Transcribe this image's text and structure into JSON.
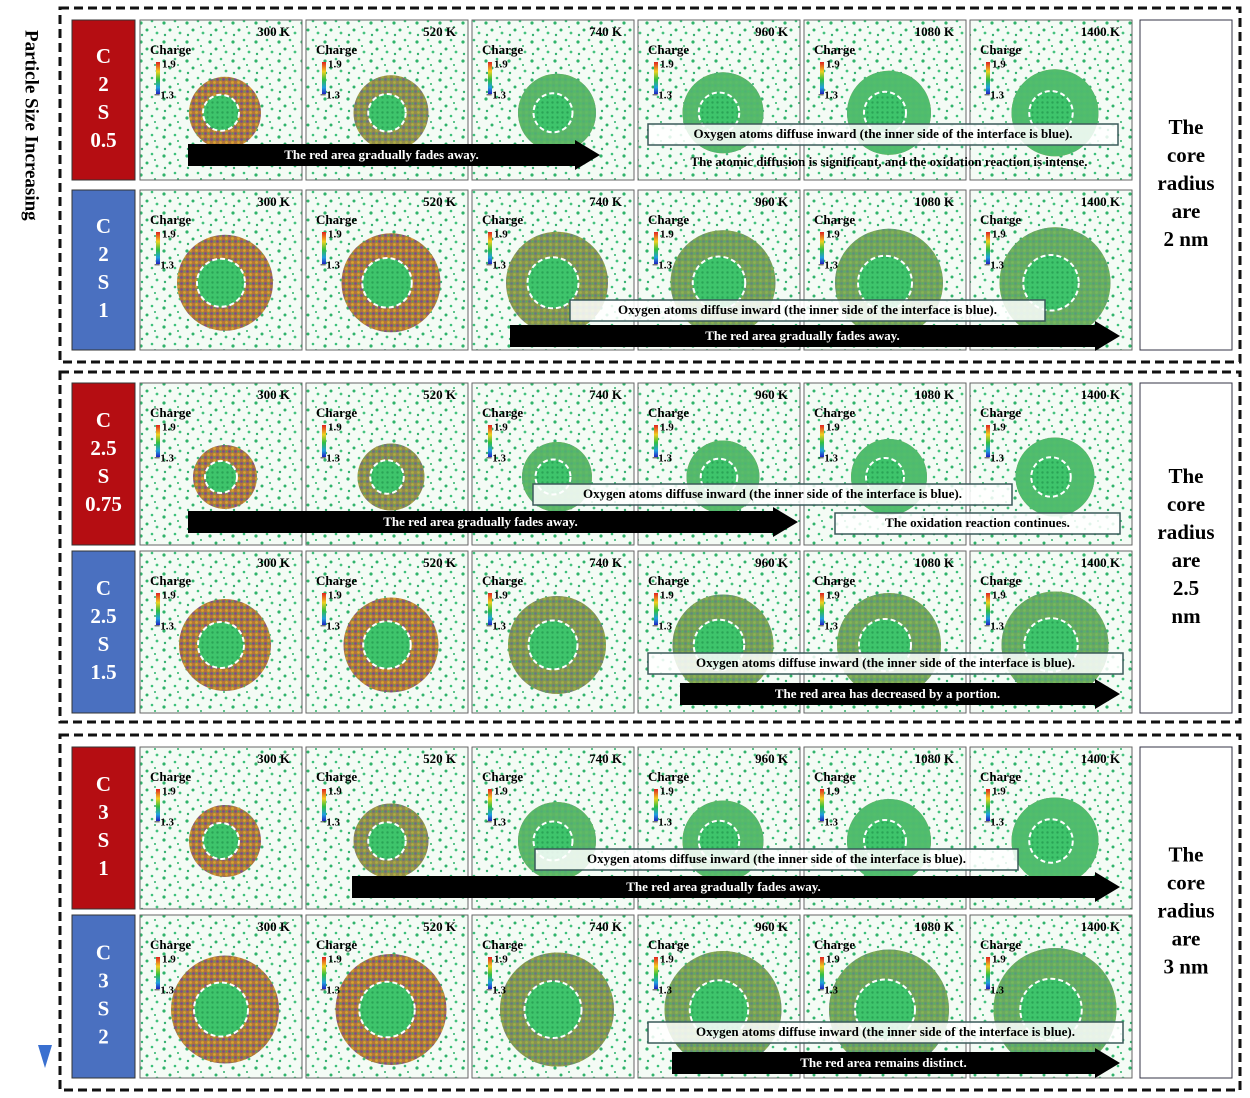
{
  "side_label": "Particle Size Increasing",
  "temperatures": [
    "300 K",
    "520 K",
    "740 K",
    "960 K",
    "1080 K",
    "1400 K"
  ],
  "legend": {
    "title": "Charge",
    "max": "1.9",
    "min": "−1.3"
  },
  "groups": [
    {
      "radius_text": [
        "The",
        "core",
        "radius",
        "are",
        "2 nm"
      ],
      "rows": [
        {
          "label": [
            "C",
            "2",
            "S",
            "0.5"
          ],
          "arrow": "The red area gradually fades away.",
          "notes": [
            "Oxygen atoms diffuse inward (the inner side of the interface is blue).",
            "The atomic diffusion is significant, and the oxidation reaction is intense."
          ]
        },
        {
          "label": [
            "C",
            "2",
            "S",
            "1"
          ],
          "arrow": "The red area gradually fades away.",
          "notes": [
            "Oxygen atoms diffuse inward (the inner side of the interface is blue)."
          ]
        }
      ]
    },
    {
      "radius_text": [
        "The",
        "core",
        "radius",
        "are",
        "2.5",
        "nm"
      ],
      "rows": [
        {
          "label": [
            "C",
            "2.5",
            "S",
            "0.75"
          ],
          "arrow": "The red area gradually fades away.",
          "notes": [
            "Oxygen atoms diffuse inward (the inner side of the interface is blue).",
            "The oxidation reaction continues."
          ]
        },
        {
          "label": [
            "C",
            "2.5",
            "S",
            "1.5"
          ],
          "arrow": "The red area has decreased by a portion.",
          "notes": [
            "Oxygen atoms diffuse inward (the inner side of the interface is blue)."
          ]
        }
      ]
    },
    {
      "radius_text": [
        "The",
        "core",
        "radius",
        "are",
        "3 nm"
      ],
      "rows": [
        {
          "label": [
            "C",
            "3",
            "S",
            "1"
          ],
          "arrow": "The red area gradually fades away.",
          "notes": [
            "Oxygen atoms diffuse inward (the inner side of the interface is blue)."
          ]
        },
        {
          "label": [
            "C",
            "3",
            "S",
            "2"
          ],
          "arrow": "The red area remains distinct.",
          "notes": [
            "Oxygen atoms diffuse inward (the inner side of the interface is blue)."
          ]
        }
      ]
    }
  ]
}
